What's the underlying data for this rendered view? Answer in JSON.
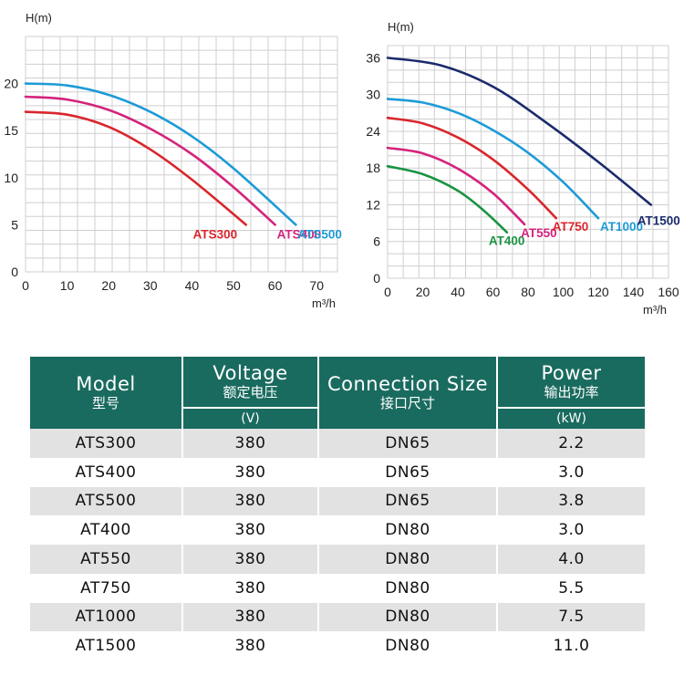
{
  "chart_data": [
    {
      "type": "line",
      "xlabel": "m³/h",
      "ylabel": "H(m)",
      "xlim": [
        0,
        75
      ],
      "ylim": [
        0,
        25
      ],
      "xticks": [
        0,
        10,
        20,
        30,
        40,
        50,
        60,
        70
      ],
      "yticks": [
        0,
        5,
        10,
        15,
        20
      ],
      "grid": true,
      "series": [
        {
          "name": "ATS300",
          "color": "#d9262c",
          "x": [
            0,
            10,
            20,
            30,
            40,
            53
          ],
          "y": [
            17,
            16.7,
            15.4,
            13.0,
            9.8,
            5
          ]
        },
        {
          "name": "ATS400",
          "color": "#d4237c",
          "x": [
            0,
            10,
            20,
            30,
            40,
            50,
            60
          ],
          "y": [
            18.6,
            18.3,
            17.2,
            15.2,
            12.5,
            9.0,
            5
          ]
        },
        {
          "name": "ATS500",
          "color": "#1d9bd7",
          "x": [
            0,
            10,
            20,
            30,
            40,
            50,
            65
          ],
          "y": [
            20,
            19.8,
            18.8,
            17.0,
            14.4,
            11.0,
            5
          ]
        }
      ]
    },
    {
      "type": "line",
      "xlabel": "m³/h",
      "ylabel": "H(m)",
      "xlim": [
        0,
        160
      ],
      "ylim": [
        0,
        38
      ],
      "xticks": [
        0,
        20,
        40,
        60,
        80,
        100,
        120,
        140,
        160
      ],
      "yticks": [
        0,
        6,
        12,
        18,
        24,
        30,
        36
      ],
      "grid": true,
      "series": [
        {
          "name": "AT400",
          "color": "#1a9343",
          "x": [
            0,
            20,
            40,
            55,
            68
          ],
          "y": [
            18.3,
            17.0,
            14.3,
            11.0,
            7.5
          ]
        },
        {
          "name": "AT550",
          "color": "#d4237c",
          "x": [
            0,
            20,
            40,
            60,
            78
          ],
          "y": [
            21.3,
            20.4,
            17.9,
            13.9,
            8.8
          ]
        },
        {
          "name": "AT750",
          "color": "#d9262c",
          "x": [
            0,
            20,
            40,
            60,
            80,
            96
          ],
          "y": [
            26.2,
            25.3,
            23.0,
            19.4,
            14.5,
            9.8
          ]
        },
        {
          "name": "AT1000",
          "color": "#1d9bd7",
          "x": [
            0,
            20,
            40,
            60,
            80,
            100,
            120
          ],
          "y": [
            29.3,
            28.7,
            27.0,
            24.2,
            20.5,
            15.7,
            9.8
          ]
        },
        {
          "name": "AT1500",
          "color": "#1b2a6b",
          "x": [
            0,
            30,
            60,
            90,
            120,
            150
          ],
          "y": [
            36,
            34.8,
            31.3,
            25.5,
            19.0,
            12.0
          ]
        }
      ]
    }
  ],
  "table": {
    "headers": [
      {
        "en": "Model",
        "zh": "型号",
        "unit": ""
      },
      {
        "en": "Voltage",
        "zh": "额定电压",
        "unit": "(V)"
      },
      {
        "en": "Connection Size",
        "zh": "接口尺寸",
        "unit": ""
      },
      {
        "en": "Power",
        "zh": "输出功率",
        "unit": "(kW)"
      }
    ],
    "rows": [
      [
        "ATS300",
        "380",
        "DN65",
        "2.2"
      ],
      [
        "ATS400",
        "380",
        "DN65",
        "3.0"
      ],
      [
        "ATS500",
        "380",
        "DN65",
        "3.8"
      ],
      [
        "AT400",
        "380",
        "DN80",
        "3.0"
      ],
      [
        "AT550",
        "380",
        "DN80",
        "4.0"
      ],
      [
        "AT750",
        "380",
        "DN80",
        "5.5"
      ],
      [
        "AT1000",
        "380",
        "DN80",
        "7.5"
      ],
      [
        "AT1500",
        "380",
        "DN80",
        "11.0"
      ]
    ]
  }
}
